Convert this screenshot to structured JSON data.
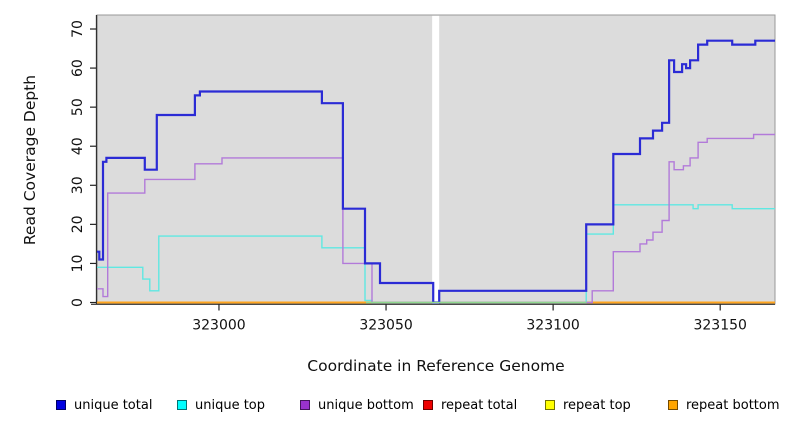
{
  "chart_data": {
    "type": "line",
    "subtype": "step-coverage-plot",
    "title": "",
    "xlabel": "Coordinate in Reference Genome",
    "ylabel": "Read Coverage Depth",
    "xlim": [
      322963.5,
      323166.4
    ],
    "ylim": [
      0,
      70
    ],
    "grid": "off",
    "panel_background": "#DCDCDC",
    "panel_border_color": "#999999",
    "axis_color": "#303030",
    "tick_label_color": "#111111",
    "x_ticks": [
      {
        "v": 323000,
        "label": "323000"
      },
      {
        "v": 323050,
        "label": "323050"
      },
      {
        "v": 323100,
        "label": "323100"
      },
      {
        "v": 323150,
        "label": "323150"
      }
    ],
    "y_ticks": [
      {
        "v": 0,
        "label": "0"
      },
      {
        "v": 10,
        "label": "10"
      },
      {
        "v": 20,
        "label": "20"
      },
      {
        "v": 30,
        "label": "30"
      },
      {
        "v": 40,
        "label": "40"
      },
      {
        "v": 50,
        "label": "50"
      },
      {
        "v": 60,
        "label": "60"
      },
      {
        "v": 70,
        "label": "70"
      }
    ],
    "gap_band": {
      "x1": 323063.8,
      "x2": 323065.9,
      "color": "#FFFFFF",
      "note": "white no-data band"
    },
    "zero_overlap_tint": {
      "x1": 323044.0,
      "x2": 323110.0,
      "color": "#8FD98F",
      "note": "unique top at 0 over repeat lines renders pale green"
    },
    "series": [
      {
        "name": "repeat total",
        "color": "#DD0000",
        "width": 1.4,
        "points": [
          [
            322963.5,
            0
          ]
        ]
      },
      {
        "name": "repeat top",
        "color": "#FFFF00",
        "width": 1.4,
        "points": [
          [
            322963.5,
            0
          ]
        ]
      },
      {
        "name": "repeat bottom",
        "color": "#FFA51E",
        "width": 2,
        "points": [
          [
            322963.5,
            0
          ]
        ]
      },
      {
        "name": "unique top",
        "color": "#5FE8E2",
        "width": 1.4,
        "points": [
          [
            322963.5,
            9
          ],
          [
            322977.2,
            6
          ],
          [
            322979.3,
            3
          ],
          [
            322982.0,
            17
          ],
          [
            323030.8,
            14
          ],
          [
            323043.7,
            0.5
          ],
          [
            323045.8,
            0
          ],
          [
            323109.9,
            17.5
          ],
          [
            323118.0,
            25
          ],
          [
            323141.9,
            24
          ],
          [
            323143.4,
            25
          ],
          [
            323153.6,
            24
          ]
        ]
      },
      {
        "name": "unique bottom",
        "color": "#B27AD9",
        "width": 1.4,
        "points": [
          [
            322963.5,
            3.5
          ],
          [
            322965.3,
            1.5
          ],
          [
            322966.7,
            28
          ],
          [
            322977.8,
            31.5
          ],
          [
            322992.8,
            35.5
          ],
          [
            323000.9,
            37
          ],
          [
            323037.1,
            10
          ],
          [
            323045.8,
            0
          ],
          [
            323111.7,
            3
          ],
          [
            323118.0,
            13
          ],
          [
            323126.0,
            15
          ],
          [
            323128.0,
            16
          ],
          [
            323129.9,
            18
          ],
          [
            323132.6,
            21
          ],
          [
            323134.7,
            36
          ],
          [
            323136.2,
            34
          ],
          [
            323139.0,
            35
          ],
          [
            323141.0,
            37
          ],
          [
            323143.4,
            41
          ],
          [
            323146.1,
            42
          ],
          [
            323160.0,
            43
          ]
        ]
      },
      {
        "name": "unique total",
        "color": "#2B2BD5",
        "width": 2.2,
        "points": [
          [
            322963.5,
            13
          ],
          [
            322964.2,
            11
          ],
          [
            322965.3,
            36
          ],
          [
            322966.3,
            37
          ],
          [
            322977.8,
            34
          ],
          [
            322981.4,
            48
          ],
          [
            322992.8,
            53
          ],
          [
            322994.3,
            54
          ],
          [
            323030.8,
            51
          ],
          [
            323037.1,
            24
          ],
          [
            323043.7,
            10
          ],
          [
            323048.2,
            5
          ],
          [
            323064.1,
            0
          ],
          [
            323065.9,
            3
          ],
          [
            323109.9,
            20
          ],
          [
            323118.0,
            38
          ],
          [
            323126.0,
            42
          ],
          [
            323129.9,
            44
          ],
          [
            323132.6,
            46
          ],
          [
            323134.7,
            62
          ],
          [
            323136.2,
            59
          ],
          [
            323138.6,
            61
          ],
          [
            323139.8,
            60
          ],
          [
            323141.0,
            62
          ],
          [
            323143.4,
            66
          ],
          [
            323146.1,
            67
          ],
          [
            323153.6,
            66
          ],
          [
            323160.5,
            67
          ]
        ]
      }
    ],
    "legend_position": "bottom"
  },
  "legend": {
    "items": [
      {
        "label": "unique total",
        "color": "#0000E0"
      },
      {
        "label": "unique top",
        "color": "#00FFFF"
      },
      {
        "label": "unique bottom",
        "color": "#9A32CD"
      },
      {
        "label": "repeat total",
        "color": "#EE0000"
      },
      {
        "label": "repeat top",
        "color": "#FFFF00"
      },
      {
        "label": "repeat bottom",
        "color": "#FFA500"
      }
    ]
  }
}
